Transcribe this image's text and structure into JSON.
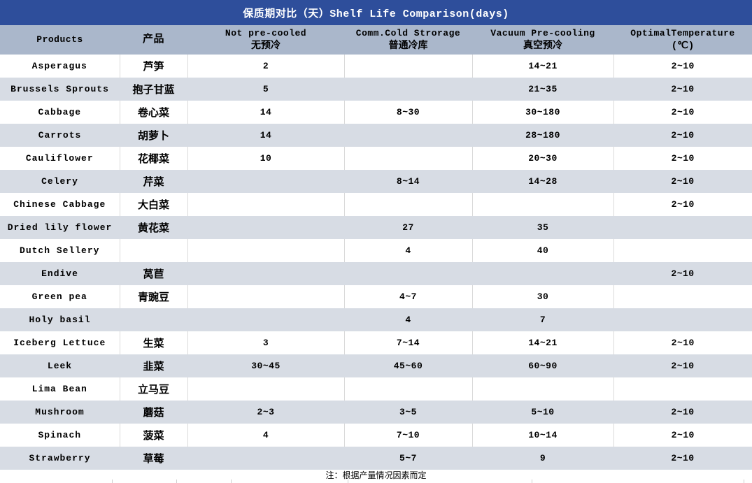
{
  "title": "保质期对比（天）Shelf Life Comparison(days)",
  "footnote": "注：根据产量情况因素而定",
  "colors": {
    "title_bg": "#2e4e9b",
    "header_bg": "#aab7cb",
    "row_alt_bg": "#d7dce4",
    "row_bg": "#ffffff",
    "divider": "#d9d9d9",
    "title_text": "#ffffff",
    "body_text": "#000000"
  },
  "chart_data": {
    "type": "table",
    "title": "保质期对比（天）Shelf Life Comparison(days)",
    "columns": [
      {
        "line1": "Products",
        "line2": ""
      },
      {
        "line1": "产品",
        "line2": ""
      },
      {
        "line1": "Not pre-cooled",
        "line2": "无预冷"
      },
      {
        "line1": "Comm.Cold Strorage",
        "line2": "普通冷库"
      },
      {
        "line1": "Vacuum Pre-cooling",
        "line2": "真空预冷"
      },
      {
        "line1": "OptimalTemperature",
        "line2": "(℃)"
      }
    ],
    "rows": [
      [
        "Asperagus",
        "芦笋",
        "2",
        "",
        "14~21",
        "2~10"
      ],
      [
        "Brussels Sprouts",
        "抱子甘蓝",
        "5",
        "",
        "21~35",
        "2~10"
      ],
      [
        "Cabbage",
        "卷心菜",
        "14",
        "8~30",
        "30~180",
        "2~10"
      ],
      [
        "Carrots",
        "胡萝卜",
        "14",
        "",
        "28~180",
        "2~10"
      ],
      [
        "Cauliflower",
        "花椰菜",
        "10",
        "",
        "20~30",
        "2~10"
      ],
      [
        "Celery",
        "芹菜",
        "",
        "8~14",
        "14~28",
        "2~10"
      ],
      [
        "Chinese Cabbage",
        "大白菜",
        "",
        "",
        "",
        "2~10"
      ],
      [
        "Dried lily flower",
        "黄花菜",
        "",
        "27",
        "35",
        ""
      ],
      [
        "Dutch Sellery",
        "",
        "",
        "4",
        "40",
        ""
      ],
      [
        "Endive",
        "莴苣",
        "",
        "",
        "",
        "2~10"
      ],
      [
        "Green pea",
        "青豌豆",
        "",
        "4~7",
        "30",
        ""
      ],
      [
        "Holy basil",
        "",
        "",
        "4",
        "7",
        ""
      ],
      [
        "Iceberg Lettuce",
        "生菜",
        "3",
        "7~14",
        "14~21",
        "2~10"
      ],
      [
        "Leek",
        "韭菜",
        "30~45",
        "45~60",
        "60~90",
        "2~10"
      ],
      [
        "Lima Bean",
        "立马豆",
        "",
        "",
        "",
        ""
      ],
      [
        "Mushroom",
        "蘑菇",
        "2~3",
        "3~5",
        "5~10",
        "2~10"
      ],
      [
        "Spinach",
        "菠菜",
        "4",
        "7~10",
        "10~14",
        "2~10"
      ],
      [
        "Strawberry",
        "草莓",
        "",
        "5~7",
        "9",
        "2~10"
      ]
    ],
    "footnote": "注：根据产量情况因素而定",
    "layout_hints": {
      "striped_rows": true,
      "first_data_row_background": "white",
      "alternate_row_background": "light-blue-gray"
    }
  }
}
